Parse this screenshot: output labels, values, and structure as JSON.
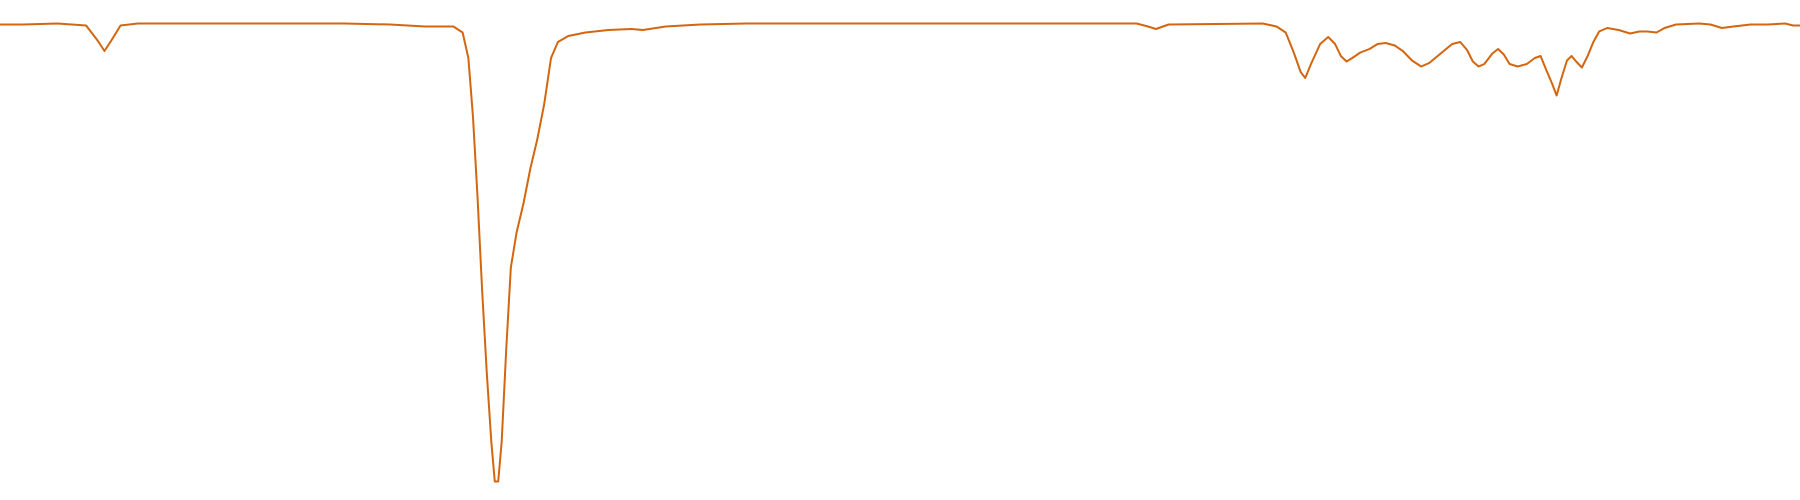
{
  "chart_data": {
    "type": "line",
    "x": [
      0,
      20,
      50,
      75,
      85,
      91,
      97,
      105,
      120,
      200,
      300,
      340,
      370,
      395,
      403,
      408,
      412,
      416,
      420,
      424,
      428,
      431,
      434,
      437,
      441,
      445,
      450,
      456,
      462,
      468,
      474,
      480,
      486,
      495,
      510,
      530,
      550,
      560,
      580,
      610,
      650,
      800,
      950,
      990,
      1000,
      1007,
      1018,
      1100,
      1112,
      1120,
      1127,
      1133,
      1137,
      1142,
      1150,
      1157,
      1163,
      1168,
      1173,
      1178,
      1185,
      1193,
      1200,
      1207,
      1215,
      1222,
      1230,
      1238,
      1245,
      1255,
      1265,
      1272,
      1278,
      1283,
      1288,
      1293,
      1300,
      1305,
      1310,
      1315,
      1322,
      1330,
      1337,
      1342,
      1347,
      1352,
      1356,
      1360,
      1365,
      1369,
      1373,
      1378,
      1383,
      1388,
      1393,
      1400,
      1410,
      1420,
      1428,
      1435,
      1443,
      1450,
      1460,
      1480,
      1490,
      1500,
      1510,
      1525,
      1540,
      1555,
      1562,
      1568
    ],
    "series": [
      {
        "color": "#d4660f",
        "values": [
          95.1,
          95.1,
          95.3,
          94.9,
          91.9,
          89.8,
          91.9,
          94.9,
          95.3,
          95.3,
          95.3,
          95.1,
          94.7,
          94.7,
          93.5,
          88.4,
          76.7,
          60.5,
          41.9,
          25.6,
          11.6,
          3.7,
          3.7,
          11.6,
          30.2,
          46.5,
          53.5,
          59.3,
          66.3,
          72.1,
          79.1,
          88.4,
          91.6,
          92.8,
          93.5,
          94.0,
          94.2,
          94.0,
          94.7,
          95.1,
          95.3,
          95.3,
          95.3,
          95.3,
          94.7,
          94.2,
          95.1,
          95.3,
          94.7,
          93.5,
          89.5,
          85.6,
          84.4,
          87.2,
          91.2,
          92.6,
          91.2,
          88.8,
          87.7,
          88.4,
          89.5,
          90.2,
          91.2,
          91.4,
          90.9,
          89.8,
          87.9,
          86.7,
          87.4,
          89.3,
          91.2,
          91.6,
          90.0,
          87.7,
          86.7,
          87.2,
          89.3,
          90.2,
          89.1,
          87.2,
          86.7,
          87.2,
          88.4,
          88.8,
          86.0,
          83.3,
          80.9,
          84.2,
          87.9,
          88.8,
          87.7,
          86.5,
          88.8,
          91.6,
          93.7,
          94.4,
          94.0,
          93.3,
          93.7,
          93.7,
          93.5,
          94.4,
          95.1,
          95.3,
          95.1,
          94.4,
          94.7,
          95.1,
          95.1,
          95.3,
          94.9,
          94.9
        ]
      }
    ],
    "xlim": [
      0,
      1568
    ],
    "ylim": [
      0,
      100
    ]
  }
}
